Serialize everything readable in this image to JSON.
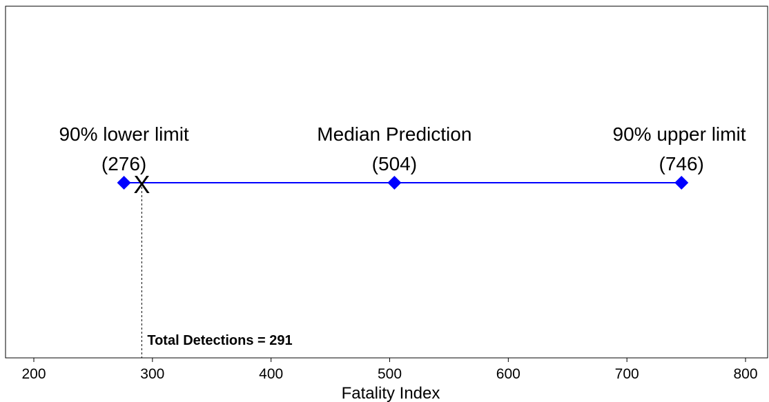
{
  "chart_data": {
    "type": "scatter",
    "xlabel": "Fatality Index",
    "xlim": [
      190,
      810
    ],
    "x_ticks": [
      200,
      300,
      400,
      500,
      600,
      700,
      800
    ],
    "x_tick_labels": [
      "200",
      "300",
      "400",
      "500",
      "600",
      "700",
      "800"
    ],
    "grid": false,
    "series": [
      {
        "color": "#0000ff",
        "marker": "diamond",
        "points": [
          {
            "x": 276,
            "label": "90% lower limit",
            "value_label": "(276)"
          },
          {
            "x": 504,
            "label": "Median Prediction",
            "value_label": "(504)"
          },
          {
            "x": 746,
            "label": "90% upper limit",
            "value_label": "(746)"
          }
        ]
      }
    ],
    "detections": {
      "x": 291,
      "marker": "X",
      "label": "Total Detections =  291"
    }
  }
}
